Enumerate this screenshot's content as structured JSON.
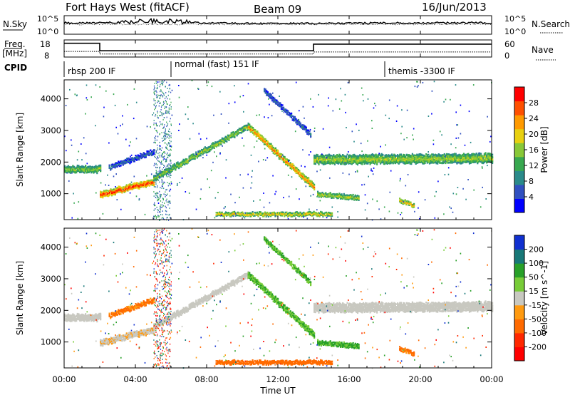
{
  "header": {
    "station": "Fort Hays West (fitACF)",
    "beam": "Beam 09",
    "date": "16/Jun/2013"
  },
  "noise_panel": {
    "left_label": "N.Sky",
    "right_label": "N.Search",
    "left_ticks": [
      "10^5",
      "10^0"
    ],
    "right_ticks": [
      "10^5",
      "10^0"
    ]
  },
  "freq_panel": {
    "left_label_1": "Freq.",
    "left_label_2": "[MHz]",
    "right_label": "Nave",
    "left_ticks": [
      "18",
      "8"
    ],
    "right_ticks": [
      "60",
      "0"
    ],
    "freq_steps": [
      [
        0.0,
        17.6
      ],
      [
        2.0,
        11.0
      ],
      [
        14.0,
        16.8
      ],
      [
        24.0,
        16.8
      ]
    ],
    "nave_steps": [
      [
        0.0,
        16
      ],
      [
        2.0,
        6
      ],
      [
        14.0,
        14
      ],
      [
        24.0,
        14
      ]
    ]
  },
  "cpid": {
    "label": "CPID",
    "segments": [
      {
        "start": 0.0,
        "text": "rbsp 200 IF"
      },
      {
        "start": 6.0,
        "text": "normal (fast) 151 IF"
      },
      {
        "start": 18.0,
        "text": "themis -3300 IF"
      }
    ]
  },
  "x_axis": {
    "label": "Time UT",
    "ticks": [
      "00:00",
      "04:00",
      "08:00",
      "12:00",
      "16:00",
      "20:00",
      "00:00"
    ]
  },
  "power_panel": {
    "ylabel": "Slant Range [km]",
    "yticks": [
      "1000",
      "2000",
      "3000",
      "4000"
    ],
    "colorbar_label": "Power [dB]",
    "colorbar_ticks": [
      "4",
      "8",
      "12",
      "16",
      "20",
      "24",
      "28"
    ],
    "colors": [
      "#0000ff",
      "#3050c0",
      "#2a8a8a",
      "#38a850",
      "#88c838",
      "#e8d010",
      "#ff9a00",
      "#ff5000",
      "#ff0000"
    ]
  },
  "velocity_panel": {
    "ylabel": "Slant Range [km]",
    "yticks": [
      "1000",
      "2000",
      "3000",
      "4000"
    ],
    "colorbar_label": "Velocity [m s^-1]",
    "colorbar_ticks": [
      "200",
      "100",
      "50",
      "15",
      "-15",
      "-50",
      "-100",
      "-200"
    ],
    "colors": [
      "#1030d0",
      "#187878",
      "#28a028",
      "#78cc38",
      "#c8c8c0",
      "#ff9a10",
      "#ff6a00",
      "#ff2800",
      "#ff0000"
    ]
  },
  "chart_data": {
    "type": "heatmap",
    "title": "Fort Hays West (fitACF)",
    "xlabel": "Time UT",
    "ylabel": "Slant Range [km]",
    "xlim_hours": [
      0,
      24
    ],
    "ylim_km": [
      180,
      4600
    ],
    "series": [
      {
        "name": "Power [dB]",
        "clim": [
          0,
          30
        ]
      },
      {
        "name": "Velocity [m s^-1]",
        "clim": [
          -250,
          250
        ]
      }
    ],
    "features": [
      {
        "kind": "band",
        "t": [
          0.0,
          2.0
        ],
        "range_km": [
          1800,
          1800
        ],
        "width_km": 180,
        "value_power": 14,
        "value_velocity": 0
      },
      {
        "kind": "band",
        "t": [
          2.0,
          5.0
        ],
        "range_km": [
          1000,
          1400
        ],
        "width_km": 160,
        "value_power": 26,
        "value_velocity": -8
      },
      {
        "kind": "band",
        "t": [
          5.0,
          10.3
        ],
        "range_km": [
          1500,
          3150
        ],
        "width_km": 140,
        "value_power": 15,
        "value_velocity": 0
      },
      {
        "kind": "band",
        "t": [
          10.3,
          14.0
        ],
        "range_km": [
          3150,
          1250
        ],
        "width_km": 160,
        "value_power": 22,
        "value_velocity": 30
      },
      {
        "kind": "band",
        "t": [
          14.0,
          24.0
        ],
        "range_km": [
          2100,
          2150
        ],
        "width_km": 260,
        "value_power": 15,
        "value_velocity": 0
      },
      {
        "kind": "band",
        "t": [
          2.5,
          5.0
        ],
        "range_km": [
          1850,
          2350
        ],
        "width_km": 120,
        "value_power": 6,
        "value_velocity": -40
      },
      {
        "kind": "band",
        "t": [
          11.2,
          13.8
        ],
        "range_km": [
          4300,
          2900
        ],
        "width_km": 120,
        "value_power": 6,
        "value_velocity": 30
      },
      {
        "kind": "band",
        "t": [
          8.5,
          15.0
        ],
        "range_km": [
          380,
          380
        ],
        "width_km": 90,
        "value_power": 19,
        "value_velocity": -60
      },
      {
        "kind": "band",
        "t": [
          14.2,
          16.5
        ],
        "range_km": [
          1000,
          900
        ],
        "width_km": 120,
        "value_power": 16,
        "value_velocity": 40
      },
      {
        "kind": "band",
        "t": [
          18.8,
          19.6
        ],
        "range_km": [
          820,
          640
        ],
        "width_km": 100,
        "value_power": 20,
        "value_velocity": -40
      }
    ]
  }
}
